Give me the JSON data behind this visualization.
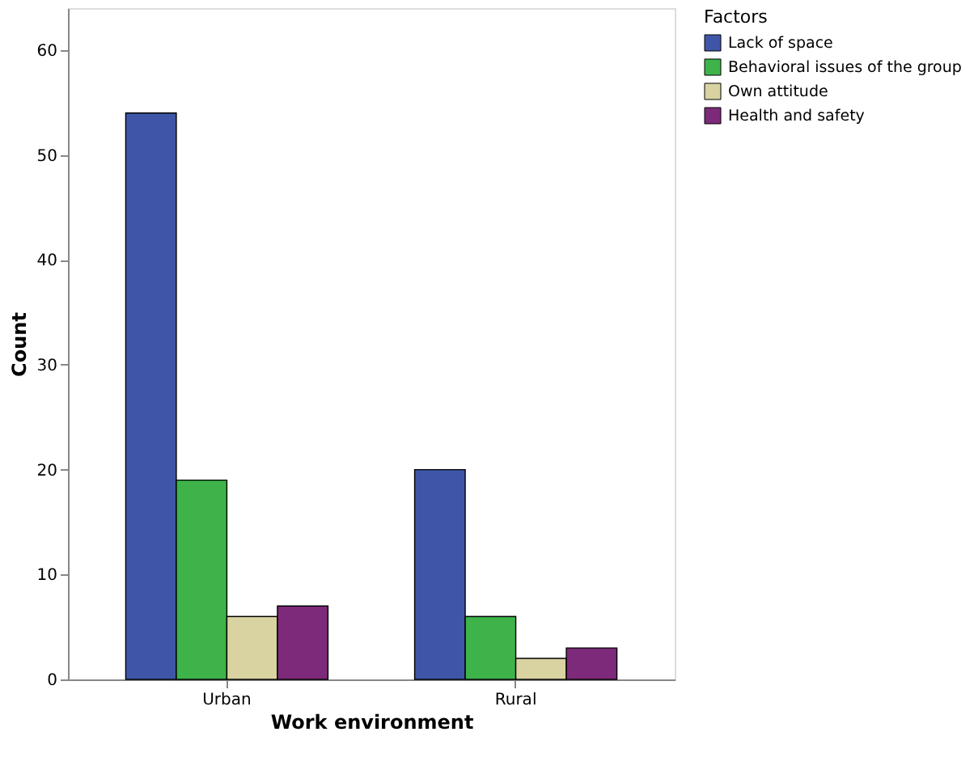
{
  "chart_data": {
    "type": "bar",
    "xlabel": "Work environment",
    "ylabel": "Count",
    "legend_title": "Factors",
    "categories": [
      "Urban",
      "Rural"
    ],
    "series": [
      {
        "name": "Lack of space",
        "color": "#3f56a8",
        "values": [
          54,
          20
        ]
      },
      {
        "name": "Behavioral issues of the group",
        "color": "#3db34a",
        "values": [
          19,
          6
        ]
      },
      {
        "name": "Own attitude",
        "color": "#d8d3a1",
        "values": [
          6,
          2
        ]
      },
      {
        "name": "Health and safety",
        "color": "#7d2a7a",
        "values": [
          7,
          3
        ]
      }
    ],
    "ylim": [
      0,
      64
    ],
    "yticks": [
      0,
      10,
      20,
      30,
      40,
      50,
      60
    ],
    "grid": false,
    "legend": "top right"
  }
}
